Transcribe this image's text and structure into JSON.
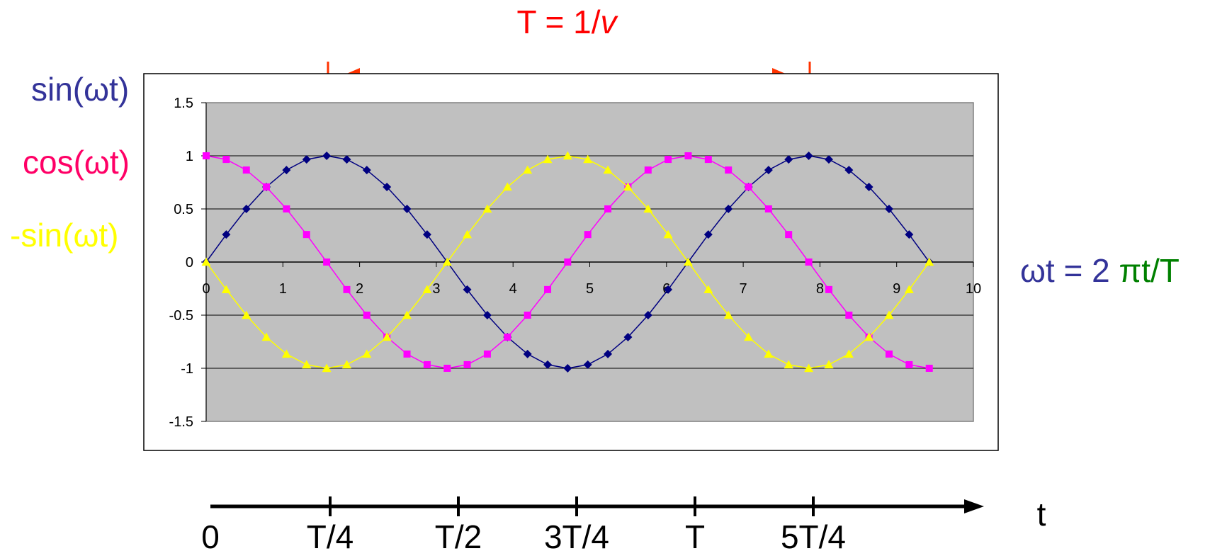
{
  "annotations": {
    "period_label": "T = 1/",
    "period_label_nu": "v",
    "omega_def_prefix": "ωt = 2 ",
    "omega_def_suffix": "πt/T",
    "time_axis_label": "t"
  },
  "time_axis": {
    "ticks": [
      "0",
      "T/4",
      "T/2",
      "3T/4",
      "T",
      "5T/4"
    ]
  },
  "colors": {
    "sin": "#000080",
    "sin_label": "#333399",
    "cos": "#ff00ff",
    "cos_label": "#ff0066",
    "neg_sin": "#ffff00",
    "neg_sin_label": "#ffff00",
    "period_text": "#ff0000",
    "period_arrow": "#ff3300",
    "omega_green": "#008000",
    "plot_area": "#c0c0c0"
  },
  "chart_data": {
    "type": "line",
    "x_range": [
      0,
      10
    ],
    "y_range": [
      -1.5,
      1.5
    ],
    "x_ticks": [
      "0",
      "1",
      "2",
      "3",
      "4",
      "5",
      "6",
      "7",
      "8",
      "9",
      "10"
    ],
    "y_ticks": [
      "1.5",
      "1",
      "0.5",
      "0",
      "-0.5",
      "-1",
      "-1.5"
    ],
    "grid": "horizontal",
    "x": [
      0,
      0.262,
      0.524,
      0.785,
      1.047,
      1.309,
      1.571,
      1.833,
      2.094,
      2.356,
      2.618,
      2.88,
      3.142,
      3.403,
      3.665,
      3.927,
      4.189,
      4.451,
      4.712,
      4.974,
      5.236,
      5.498,
      5.76,
      6.021,
      6.283,
      6.545,
      6.807,
      7.069,
      7.33,
      7.592,
      7.854,
      8.116,
      8.378,
      8.639,
      8.901,
      9.163,
      9.425
    ],
    "series": [
      {
        "name": "sin(ωt)",
        "marker": "diamond",
        "values": [
          0,
          0.259,
          0.5,
          0.707,
          0.866,
          0.966,
          1,
          0.966,
          0.866,
          0.707,
          0.5,
          0.259,
          0,
          -0.259,
          -0.5,
          -0.707,
          -0.866,
          -0.966,
          -1,
          -0.966,
          -0.866,
          -0.707,
          -0.5,
          -0.259,
          0,
          0.259,
          0.5,
          0.707,
          0.866,
          0.966,
          1,
          0.966,
          0.866,
          0.707,
          0.5,
          0.259,
          0
        ]
      },
      {
        "name": "cos(ωt)",
        "marker": "square",
        "values": [
          1,
          0.966,
          0.866,
          0.707,
          0.5,
          0.259,
          0,
          -0.259,
          -0.5,
          -0.707,
          -0.866,
          -0.966,
          -1,
          -0.966,
          -0.866,
          -0.707,
          -0.5,
          -0.259,
          0,
          0.259,
          0.5,
          0.707,
          0.866,
          0.966,
          1,
          0.966,
          0.866,
          0.707,
          0.5,
          0.259,
          0,
          -0.259,
          -0.5,
          -0.707,
          -0.866,
          -0.966,
          -1
        ]
      },
      {
        "name": "-sin(ωt)",
        "marker": "triangle",
        "values": [
          0,
          -0.259,
          -0.5,
          -0.707,
          -0.866,
          -0.966,
          -1,
          -0.966,
          -0.866,
          -0.707,
          -0.5,
          -0.259,
          0,
          0.259,
          0.5,
          0.707,
          0.866,
          0.966,
          1,
          0.966,
          0.866,
          0.707,
          0.5,
          0.259,
          0,
          -0.259,
          -0.5,
          -0.707,
          -0.866,
          -0.966,
          -1,
          -0.966,
          -0.866,
          -0.707,
          -0.5,
          -0.259,
          0
        ]
      }
    ]
  }
}
